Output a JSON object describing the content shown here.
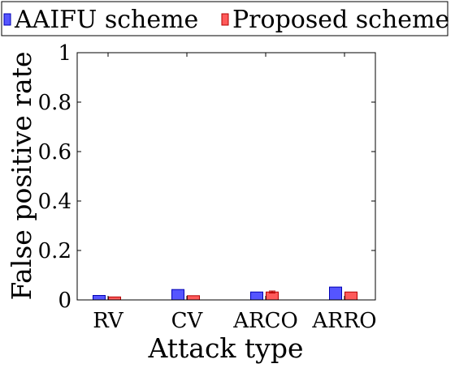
{
  "chart_data": {
    "type": "bar",
    "title": "",
    "xlabel": "Attack type",
    "ylabel": "False positive rate",
    "categories": [
      "RV",
      "CV",
      "ARCO",
      "ARRO"
    ],
    "ylim": [
      0,
      1
    ],
    "yticks": [
      0,
      0.2,
      0.4,
      0.6,
      0.8,
      1
    ],
    "ytick_labels": [
      "0",
      "0.2",
      "0.4",
      "0.6",
      "0.8",
      "1"
    ],
    "grid": false,
    "legend_position": "top",
    "series": [
      {
        "name": "AAIFU scheme",
        "values": [
          0.018,
          0.042,
          0.032,
          0.052
        ],
        "color": "#5555ff",
        "edge_color": "#0000b4"
      },
      {
        "name": "Proposed scheme",
        "values": [
          0.012,
          0.017,
          0.032,
          0.032
        ],
        "color": "#ff5a5a",
        "edge_color": "#b40000",
        "error": [
          0,
          0,
          0.004,
          0
        ]
      }
    ]
  }
}
